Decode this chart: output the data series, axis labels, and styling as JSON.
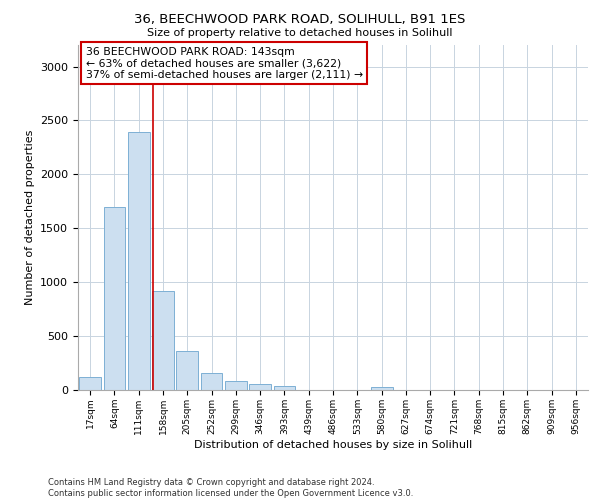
{
  "title": "36, BEECHWOOD PARK ROAD, SOLIHULL, B91 1ES",
  "subtitle": "Size of property relative to detached houses in Solihull",
  "xlabel": "Distribution of detached houses by size in Solihull",
  "ylabel": "Number of detached properties",
  "footnote": "Contains HM Land Registry data © Crown copyright and database right 2024.\nContains public sector information licensed under the Open Government Licence v3.0.",
  "bin_labels": [
    "17sqm",
    "64sqm",
    "111sqm",
    "158sqm",
    "205sqm",
    "252sqm",
    "299sqm",
    "346sqm",
    "393sqm",
    "439sqm",
    "486sqm",
    "533sqm",
    "580sqm",
    "627sqm",
    "674sqm",
    "721sqm",
    "768sqm",
    "815sqm",
    "862sqm",
    "909sqm",
    "956sqm"
  ],
  "bar_values": [
    120,
    1700,
    2390,
    920,
    360,
    155,
    80,
    55,
    35,
    0,
    0,
    0,
    30,
    0,
    0,
    0,
    0,
    0,
    0,
    0,
    0
  ],
  "bar_color": "#ccdff0",
  "bar_edge_color": "#7db0d4",
  "property_label": "36 BEECHWOOD PARK ROAD: 143sqm",
  "annotation_line1": "← 63% of detached houses are smaller (3,622)",
  "annotation_line2": "37% of semi-detached houses are larger (2,111) →",
  "vline_color": "#cc0000",
  "vline_position": 2.57,
  "ylim": [
    0,
    3200
  ],
  "annotation_box_color": "#ffffff",
  "annotation_box_edge": "#cc0000",
  "background_color": "#ffffff",
  "grid_color": "#c8d4e0"
}
